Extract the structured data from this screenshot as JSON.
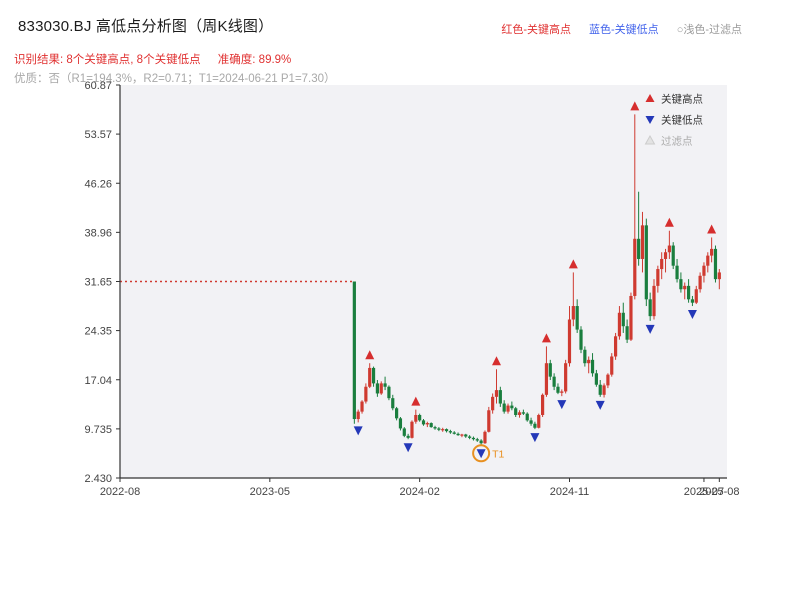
{
  "header": {
    "title": "833030.BJ 高低点分析图（周K线图）",
    "legend_top": [
      {
        "label": "红色-关键高点",
        "color": "#e03131"
      },
      {
        "label": "蓝色-关键低点",
        "color": "#4263eb"
      },
      {
        "label": "○浅色-过滤点",
        "color": "#9a9a9a"
      }
    ],
    "result_text": "识别结果: 8个关键高点, 8个关键低点",
    "accuracy_text": "准确度: 89.9%",
    "quality_line": "优质：否（R1=194.3%，R2=0.71；T1=2024-06-21 P1=7.30）"
  },
  "chart_data": {
    "type": "candlestick",
    "title": "833030.BJ 高低点分析图（周K线图）",
    "ylim": [
      2.43,
      60.87
    ],
    "y_ticks": [
      {
        "label": "60.87",
        "value": 60.87
      },
      {
        "label": "53.57",
        "value": 53.57
      },
      {
        "label": "46.26",
        "value": 46.26
      },
      {
        "label": "38.96",
        "value": 38.96
      },
      {
        "label": "31.65",
        "value": 31.65
      },
      {
        "label": "24.35",
        "value": 24.35
      },
      {
        "label": "17.04",
        "value": 17.04
      },
      {
        "label": "9.735",
        "value": 9.735
      },
      {
        "label": "2.430",
        "value": 2.43
      }
    ],
    "x_ticks": [
      {
        "label": "2022-08",
        "week": 0
      },
      {
        "label": "2023-05",
        "week": 39
      },
      {
        "label": "2024-02",
        "week": 78
      },
      {
        "label": "2024-11",
        "week": 117
      },
      {
        "label": "2025-07",
        "week": 152
      },
      {
        "label": "2025-08",
        "week": 156
      }
    ],
    "total_weeks": 158,
    "suspension_line": {
      "price": 31.65,
      "from_week": 0,
      "to_week": 61
    },
    "candles_start_week": 61,
    "candles": [
      [
        31.65,
        31.65,
        10.5,
        11.2
      ],
      [
        11.2,
        12.6,
        10.7,
        12.3
      ],
      [
        12.3,
        14.0,
        12.0,
        13.8
      ],
      [
        13.8,
        16.5,
        13.5,
        16.0
      ],
      [
        16.0,
        19.5,
        15.8,
        18.8
      ],
      [
        18.8,
        19.0,
        16.0,
        16.5
      ],
      [
        16.5,
        17.0,
        14.5,
        15.0
      ],
      [
        15.0,
        16.8,
        14.8,
        16.5
      ],
      [
        16.5,
        17.5,
        15.5,
        16.0
      ],
      [
        16.0,
        16.2,
        14.0,
        14.3
      ],
      [
        14.3,
        14.8,
        12.5,
        12.8
      ],
      [
        12.8,
        13.0,
        11.0,
        11.3
      ],
      [
        11.3,
        11.5,
        9.5,
        9.8
      ],
      [
        9.8,
        10.0,
        8.5,
        8.7
      ],
      [
        8.7,
        9.0,
        8.2,
        8.4
      ],
      [
        8.4,
        11.0,
        8.3,
        10.8
      ],
      [
        10.8,
        12.6,
        10.5,
        11.8
      ],
      [
        11.8,
        12.0,
        10.8,
        11.0
      ],
      [
        11.0,
        11.2,
        10.2,
        10.4
      ],
      [
        10.4,
        10.8,
        10.0,
        10.6
      ],
      [
        10.6,
        10.7,
        9.9,
        10.0
      ],
      [
        10.0,
        10.2,
        9.6,
        9.8
      ],
      [
        9.8,
        10.0,
        9.4,
        9.6
      ],
      [
        9.6,
        9.9,
        9.3,
        9.7
      ],
      [
        9.7,
        9.8,
        9.2,
        9.4
      ],
      [
        9.4,
        9.6,
        9.0,
        9.2
      ],
      [
        9.2,
        9.4,
        8.9,
        9.0
      ],
      [
        9.0,
        9.2,
        8.7,
        8.8
      ],
      [
        8.8,
        9.0,
        8.5,
        8.9
      ],
      [
        8.9,
        9.0,
        8.4,
        8.6
      ],
      [
        8.6,
        8.8,
        8.2,
        8.4
      ],
      [
        8.4,
        8.6,
        8.0,
        8.2
      ],
      [
        8.2,
        8.4,
        7.8,
        8.0
      ],
      [
        8.0,
        8.2,
        7.3,
        7.6
      ],
      [
        7.6,
        9.5,
        7.5,
        9.3
      ],
      [
        9.3,
        13.0,
        9.2,
        12.5
      ],
      [
        12.5,
        15.0,
        12.0,
        14.5
      ],
      [
        14.5,
        18.6,
        13.5,
        15.5
      ],
      [
        15.5,
        16.0,
        13.0,
        13.5
      ],
      [
        13.5,
        14.0,
        12.0,
        12.3
      ],
      [
        12.3,
        13.5,
        12.0,
        13.2
      ],
      [
        13.2,
        13.8,
        12.5,
        12.8
      ],
      [
        12.8,
        13.0,
        11.5,
        11.8
      ],
      [
        11.8,
        12.5,
        11.4,
        12.2
      ],
      [
        12.2,
        12.6,
        11.8,
        12.0
      ],
      [
        12.0,
        12.2,
        10.8,
        11.0
      ],
      [
        11.0,
        11.4,
        10.2,
        10.5
      ],
      [
        10.5,
        10.8,
        9.7,
        9.9
      ],
      [
        9.9,
        12.0,
        9.8,
        11.8
      ],
      [
        11.8,
        15.0,
        11.5,
        14.8
      ],
      [
        14.8,
        22.0,
        14.5,
        19.5
      ],
      [
        19.5,
        20.0,
        17.0,
        17.5
      ],
      [
        17.5,
        18.0,
        15.5,
        16.0
      ],
      [
        16.0,
        16.5,
        14.9,
        15.1
      ],
      [
        15.1,
        15.6,
        14.6,
        15.3
      ],
      [
        15.3,
        20.0,
        15.0,
        19.5
      ],
      [
        19.5,
        28.0,
        19.0,
        26.0
      ],
      [
        26.0,
        33.0,
        25.0,
        28.0
      ],
      [
        28.0,
        29.0,
        24.0,
        24.5
      ],
      [
        24.5,
        25.0,
        21.0,
        21.5
      ],
      [
        21.5,
        22.0,
        19.0,
        19.5
      ],
      [
        19.5,
        20.5,
        18.0,
        20.0
      ],
      [
        20.0,
        21.0,
        17.5,
        18.0
      ],
      [
        18.0,
        18.5,
        16.0,
        16.3
      ],
      [
        16.3,
        17.0,
        14.5,
        14.8
      ],
      [
        14.8,
        16.5,
        14.4,
        16.2
      ],
      [
        16.2,
        18.0,
        15.8,
        17.8
      ],
      [
        17.8,
        21.0,
        17.5,
        20.5
      ],
      [
        20.5,
        24.0,
        20.0,
        23.5
      ],
      [
        23.5,
        28.0,
        23.0,
        27.0
      ],
      [
        27.0,
        28.5,
        24.0,
        25.0
      ],
      [
        25.0,
        26.0,
        22.5,
        23.0
      ],
      [
        23.0,
        30.0,
        22.8,
        29.5
      ],
      [
        29.5,
        56.5,
        29.0,
        38.0
      ],
      [
        38.0,
        45.0,
        34.0,
        35.0
      ],
      [
        35.0,
        42.0,
        33.0,
        40.0
      ],
      [
        40.0,
        41.0,
        28.0,
        29.0
      ],
      [
        29.0,
        30.0,
        25.8,
        26.5
      ],
      [
        26.5,
        32.0,
        26.0,
        31.0
      ],
      [
        31.0,
        34.0,
        30.0,
        33.5
      ],
      [
        33.5,
        36.0,
        32.0,
        35.0
      ],
      [
        35.0,
        36.5,
        33.0,
        36.0
      ],
      [
        36.0,
        39.2,
        35.0,
        37.0
      ],
      [
        37.0,
        37.5,
        33.5,
        34.0
      ],
      [
        34.0,
        35.0,
        31.5,
        32.0
      ],
      [
        32.0,
        33.0,
        30.0,
        30.5
      ],
      [
        30.5,
        31.5,
        29.0,
        31.0
      ],
      [
        31.0,
        32.0,
        28.5,
        29.0
      ],
      [
        29.0,
        29.5,
        28.0,
        28.5
      ],
      [
        28.5,
        31.0,
        28.3,
        30.5
      ],
      [
        30.5,
        33.0,
        30.0,
        32.5
      ],
      [
        32.5,
        34.5,
        31.5,
        34.0
      ],
      [
        34.0,
        36.0,
        33.0,
        35.5
      ],
      [
        35.5,
        38.2,
        34.5,
        36.5
      ],
      [
        36.5,
        37.0,
        31.5,
        32.0
      ],
      [
        32.0,
        33.5,
        30.5,
        33.0
      ]
    ],
    "key_highs": [
      {
        "i": 4,
        "price": 19.5
      },
      {
        "i": 16,
        "price": 12.6
      },
      {
        "i": 37,
        "price": 18.6
      },
      {
        "i": 50,
        "price": 22.0
      },
      {
        "i": 57,
        "price": 33.0
      },
      {
        "i": 73,
        "price": 56.5
      },
      {
        "i": 82,
        "price": 39.2
      },
      {
        "i": 93,
        "price": 38.2
      }
    ],
    "key_lows": [
      {
        "i": 1,
        "price": 10.7
      },
      {
        "i": 14,
        "price": 8.2
      },
      {
        "i": 33,
        "price": 7.3
      },
      {
        "i": 47,
        "price": 9.7
      },
      {
        "i": 54,
        "price": 14.6
      },
      {
        "i": 64,
        "price": 14.5
      },
      {
        "i": 77,
        "price": 25.8
      },
      {
        "i": 88,
        "price": 28.0
      }
    ],
    "t1": {
      "i": 33,
      "price": 7.3,
      "label": "T1"
    },
    "legend": [
      {
        "label": "关键高点",
        "marker": "up",
        "color": "#d62e2e",
        "text_color": "#333333"
      },
      {
        "label": "关键低点",
        "marker": "down",
        "color": "#2438b8",
        "text_color": "#333333"
      },
      {
        "label": "过滤点",
        "marker": "up",
        "color": "#e3e3e3",
        "text_color": "#ababab"
      }
    ],
    "colors": {
      "up": "#cf3a30",
      "down": "#1a7e3e",
      "suspension": "#cf3a30",
      "key_high": "#d62e2e",
      "key_low": "#2438b8",
      "filtered": "#e3e3e3",
      "t1": "#e89020",
      "axis": "#333333",
      "tick_text": "#444444",
      "plot_bg": "#f2f2f5"
    }
  }
}
